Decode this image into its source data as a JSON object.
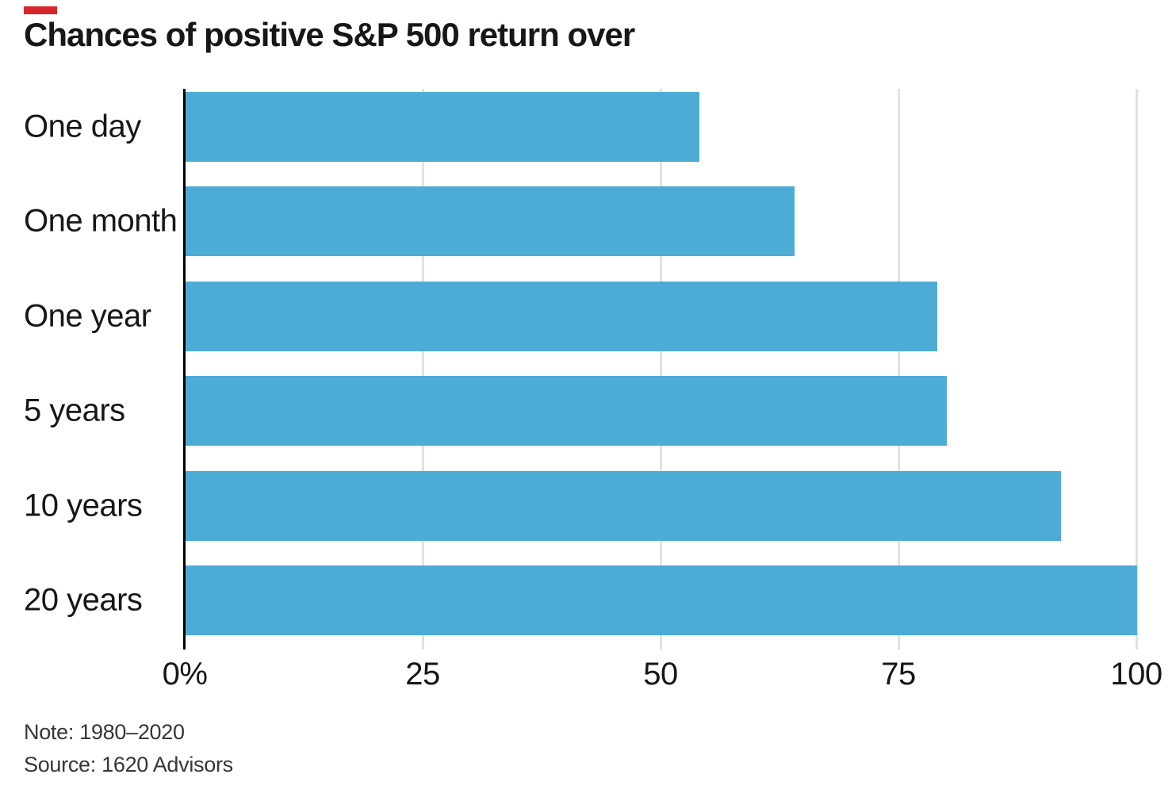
{
  "accent_color": "#d8262c",
  "note": "Note: 1980–2020",
  "source": "Source: 1620 Advisors",
  "chart_data": {
    "type": "bar",
    "orientation": "horizontal",
    "title": "Chances of positive S&P 500 return over",
    "categories": [
      "One day",
      "One month",
      "One year",
      "5 years",
      "10 years",
      "20 years"
    ],
    "values": [
      54,
      64,
      79,
      80,
      92,
      100
    ],
    "unit": "%",
    "xlabel": "",
    "ylabel": "",
    "xlim": [
      0,
      100
    ],
    "xticks": [
      0,
      25,
      50,
      75,
      100
    ],
    "xtick_labels": [
      "0%",
      "25",
      "50",
      "75",
      "100"
    ],
    "grid": true,
    "legend": false,
    "bar_color": "#4dacd6"
  }
}
